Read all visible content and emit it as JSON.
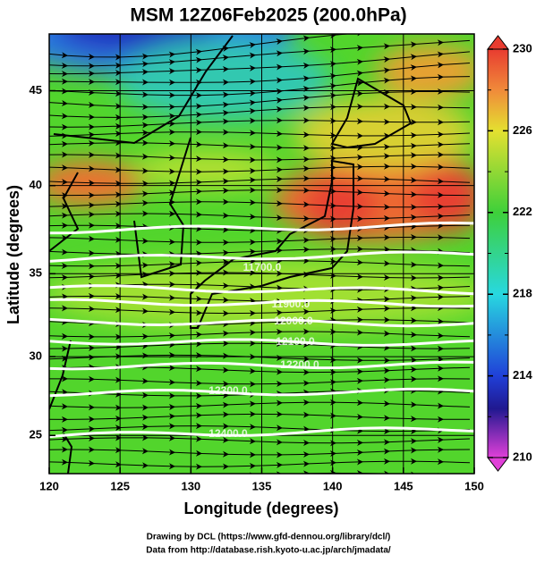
{
  "title": "MSM 12Z06Feb2025 (200.0hPa)",
  "x_axis": {
    "label": "Longitude (degrees)",
    "ticks": [
      120,
      125,
      130,
      135,
      140,
      145,
      150
    ],
    "range": [
      120,
      150
    ]
  },
  "y_axis": {
    "label": "Latitude  (degrees)",
    "ticks": [
      25,
      30,
      35,
      40,
      45
    ],
    "range": [
      22.5,
      47.8
    ]
  },
  "colorbar": {
    "ticks": [
      210,
      214,
      218,
      222,
      226,
      230
    ],
    "minor_ticks": [
      212,
      216,
      220,
      224,
      228
    ]
  },
  "contour_labels": [
    "11700.0",
    "11900.0",
    "12000.0",
    "12100.0",
    "12200.0",
    "12300.0",
    "12400.0"
  ],
  "credits": [
    "Drawing by DCL (https://www.gfd-dennou.org/library/dcl/)",
    "Data from http://database.rish.kyoto-u.ac.jp/arch/jmadata/"
  ]
}
